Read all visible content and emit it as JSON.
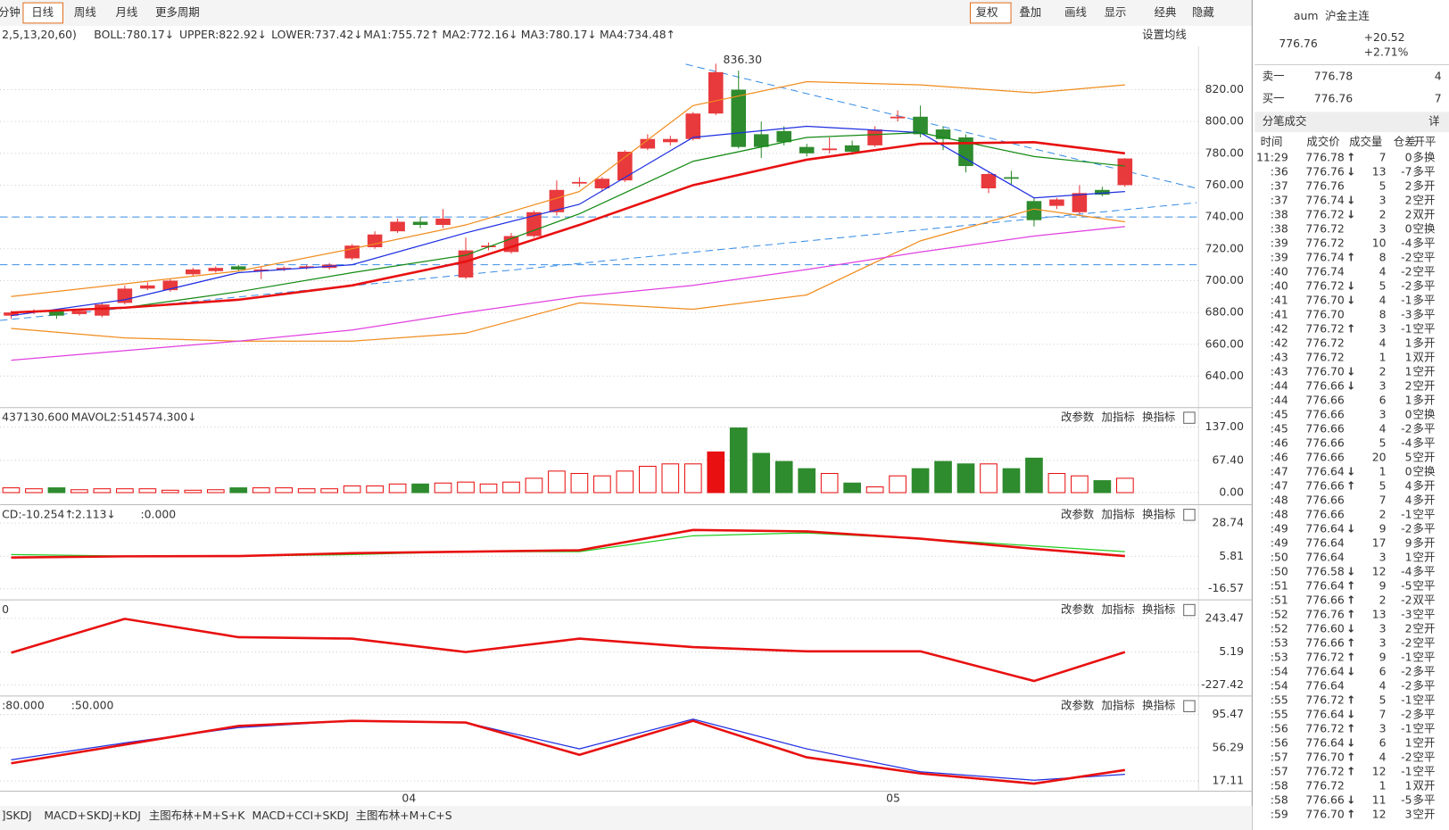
{
  "toolbar": {
    "left": [
      "分钟",
      "日线",
      "周线",
      "月线",
      "更多周期"
    ],
    "right": [
      "复权",
      "叠加",
      "画线",
      "显示",
      "经典",
      "隐藏"
    ]
  },
  "indicator_legend": [
    "2,5,13,20,60)",
    "BOLL:780.17↓",
    "UPPER:822.92↓",
    "LOWER:737.42↓",
    "MA1:755.72↑",
    "MA2:772.16↓",
    "MA3:780.17↓",
    "MA4:734.48↑"
  ],
  "set_ma": "设置均线",
  "panel_buttons": [
    "改参数",
    "加指标",
    "换指标"
  ],
  "x_labels": [
    {
      "value": 17.5,
      "label": "04"
    },
    {
      "value": 38.8,
      "label": "05"
    }
  ],
  "charts": {
    "price": {
      "ylim": [
        620.8,
        847.3
      ],
      "yticks": [
        {
          "value": 640,
          "label": "640.00"
        },
        {
          "value": 660,
          "label": "660.00"
        },
        {
          "value": 680,
          "label": "680.00"
        },
        {
          "value": 700,
          "label": "700.00"
        },
        {
          "value": 720,
          "label": "720.00"
        },
        {
          "value": 740,
          "label": "740.00"
        },
        {
          "value": 760,
          "label": "760.00"
        },
        {
          "value": 780,
          "label": "780.00"
        },
        {
          "value": 800,
          "label": "800.00"
        },
        {
          "value": 820,
          "label": "820.00"
        }
      ],
      "high_label": {
        "value": 836.3,
        "label": "836.30",
        "index": 31
      },
      "candles": [
        [
          678,
          681,
          676,
          680
        ],
        [
          680,
          682,
          679,
          681
        ],
        [
          681,
          682,
          676,
          678
        ],
        [
          679,
          682,
          678,
          681
        ],
        [
          678,
          686,
          677,
          685
        ],
        [
          686,
          697,
          685,
          695
        ],
        [
          695,
          699,
          694,
          697
        ],
        [
          694,
          701,
          693,
          700
        ],
        [
          704,
          708,
          703,
          707
        ],
        [
          706,
          709,
          705,
          708
        ],
        [
          709,
          710,
          706,
          707
        ],
        [
          706,
          709,
          701,
          707
        ],
        [
          707,
          709,
          706,
          708
        ],
        [
          708,
          710,
          707,
          709
        ],
        [
          708,
          711,
          707,
          710
        ],
        [
          714,
          723,
          713,
          722
        ],
        [
          721,
          731,
          720,
          729
        ],
        [
          731,
          739,
          730,
          737
        ],
        [
          737,
          740,
          733,
          735
        ],
        [
          735,
          745,
          733,
          739
        ],
        [
          702,
          727,
          701,
          719
        ],
        [
          721,
          724,
          719,
          722
        ],
        [
          718,
          730,
          717,
          728
        ],
        [
          728,
          744,
          727,
          743
        ],
        [
          743,
          763,
          741,
          757
        ],
        [
          761,
          765,
          759,
          762
        ],
        [
          758,
          765,
          756,
          764
        ],
        [
          763,
          782,
          762,
          781
        ],
        [
          783,
          792,
          782,
          789
        ],
        [
          787,
          791,
          785,
          789
        ],
        [
          789,
          806,
          788,
          805
        ],
        [
          805,
          836.3,
          804,
          831
        ],
        [
          820,
          832,
          783,
          784
        ],
        [
          792,
          800,
          777,
          784
        ],
        [
          794,
          797,
          785,
          787
        ],
        [
          784,
          786,
          778,
          780
        ],
        [
          782,
          790,
          780,
          783
        ],
        [
          785,
          788,
          779,
          781
        ],
        [
          785,
          797,
          784,
          795
        ],
        [
          802,
          807,
          800,
          803
        ],
        [
          803,
          810,
          790,
          792
        ],
        [
          795,
          797,
          782,
          789
        ],
        [
          790,
          792,
          768,
          772
        ],
        [
          758,
          768,
          755,
          767
        ],
        [
          765,
          769,
          760,
          764
        ],
        [
          750,
          752,
          734,
          738
        ],
        [
          747,
          752,
          745,
          751
        ],
        [
          743,
          760,
          742,
          755
        ],
        [
          757,
          759,
          753,
          754
        ],
        [
          760,
          777,
          759,
          776.76
        ]
      ],
      "x": [
        0,
        5,
        10,
        15,
        20,
        25,
        30,
        35,
        40,
        45,
        49
      ],
      "series": [
        {
          "name": "UPPER",
          "color": "#f08c1e",
          "values": [
            690,
            698,
            706,
            720,
            735,
            756,
            810,
            825,
            823,
            818,
            823
          ]
        },
        {
          "name": "LOWER",
          "color": "#f08c1e",
          "values": [
            670,
            664,
            662,
            662,
            667,
            686,
            682,
            691,
            725,
            745,
            737
          ]
        },
        {
          "name": "MA4",
          "color": "#e040e0",
          "values": [
            650,
            656,
            662,
            669,
            680,
            690,
            697,
            707,
            718,
            728,
            734
          ]
        },
        {
          "name": "MA1",
          "color": "#1e2ee0",
          "values": [
            678,
            688,
            705,
            710,
            730,
            748,
            790,
            797,
            793,
            752,
            756
          ]
        },
        {
          "name": "MA2",
          "color": "#138a13",
          "values": [
            680,
            683,
            693,
            705,
            716,
            742,
            775,
            790,
            793,
            778,
            772
          ]
        },
        {
          "name": "MA3",
          "color": "#e81010",
          "values": [
            680,
            683,
            688,
            697,
            712,
            735,
            760,
            776,
            786,
            787,
            780
          ]
        }
      ]
    },
    "volume": {
      "header": [
        "437130.600",
        "MAVOL2:514574.300↓"
      ],
      "ylim": [
        -23.2,
        173.7
      ],
      "yticks": [
        {
          "value": 0,
          "label": "0.00"
        },
        {
          "value": 67.4,
          "label": "67.40"
        },
        {
          "value": 137,
          "label": "137.00"
        }
      ],
      "values": [
        10,
        8,
        10,
        6,
        8,
        8,
        8,
        5,
        5,
        6,
        10,
        10,
        10,
        8,
        8,
        14,
        14,
        18,
        18,
        20,
        22,
        18,
        22,
        30,
        45,
        40,
        35,
        45,
        55,
        60,
        60,
        85,
        135,
        82,
        65,
        50,
        40,
        20,
        12,
        35,
        50,
        65,
        60,
        60,
        50,
        72,
        40,
        35,
        25,
        30
      ]
    },
    "macd": {
      "header": [
        "CD:-10.254↑",
        ":2.113↓",
        ":0.000"
      ],
      "ylim": [
        -23.6,
        40.2
      ],
      "yticks": [
        {
          "value": 28.74,
          "label": "28.74"
        },
        {
          "value": 5.81,
          "label": "5.81"
        },
        {
          "value": -16.57,
          "label": "-16.57"
        }
      ],
      "x": [
        0,
        5,
        10,
        15,
        20,
        25,
        30,
        35,
        40,
        45,
        49
      ],
      "series": [
        {
          "name": "DEA",
          "color": "#22cc22",
          "values": [
            7,
            6,
            6,
            7,
            9,
            9,
            20,
            22,
            18,
            13,
            9
          ]
        },
        {
          "name": "DIF",
          "color": "#e81010",
          "values": [
            5,
            5.8,
            6,
            8,
            9,
            10,
            24,
            23,
            18,
            11,
            6
          ]
        }
      ]
    },
    "cci": {
      "header": [
        "0"
      ],
      "ylim": [
        -299.4,
        361.2
      ],
      "yticks": [
        {
          "value": 243.47,
          "label": "243.47"
        },
        {
          "value": 5.19,
          "label": "5.19"
        },
        {
          "value": -227.42,
          "label": "-227.42"
        }
      ],
      "x": [
        0,
        5,
        10,
        15,
        20,
        25,
        30,
        35,
        40,
        45,
        49
      ],
      "series": [
        {
          "name": "CCI",
          "color": "#e81010",
          "values": [
            0,
            240,
            110,
            100,
            5,
            100,
            40,
            10,
            10,
            -200,
            5
          ]
        }
      ]
    },
    "skdj": {
      "header": [
        ":80.000",
        ":50.000"
      ],
      "ylim": [
        6.2,
        115.1
      ],
      "yticks": [
        {
          "value": 95.47,
          "label": "95.47"
        },
        {
          "value": 56.29,
          "label": "56.29"
        },
        {
          "value": 17.11,
          "label": "17.11"
        }
      ],
      "x": [
        0,
        5,
        10,
        15,
        20,
        25,
        30,
        35,
        40,
        45,
        49
      ],
      "series": [
        {
          "name": "D",
          "color": "#1e2ee0",
          "values": [
            42,
            62,
            80,
            88,
            86,
            55,
            90,
            55,
            28,
            18,
            25
          ]
        },
        {
          "name": "K",
          "color": "#e81010",
          "values": [
            38,
            60,
            82,
            88,
            86,
            48,
            88,
            45,
            26,
            14,
            30
          ]
        }
      ]
    }
  },
  "bottom_tabs": [
    "]SKDJ",
    "MACD+SKDJ+KDJ",
    "主图布林+M+S+K",
    "MACD+CCI+SKDJ",
    "主图布林+M+C+S"
  ],
  "quote": {
    "code": "aum",
    "name": "沪金主连",
    "price": "776.76",
    "change": "+20.52",
    "pct": "+2.71%",
    "ask_label": "卖一",
    "ask": "776.78",
    "ask_vol": "4",
    "bid_label": "买一",
    "bid": "776.76",
    "bid_vol": "7"
  },
  "trades": {
    "title": "分笔成交",
    "detail": "详",
    "columns": [
      "时间",
      "成交价",
      "成交量",
      "仓差",
      "开平"
    ],
    "rows": [
      [
        "11:29",
        "776.78",
        "↑",
        "7",
        "0",
        "多换"
      ],
      [
        ":36",
        "776.76",
        "↓",
        "13",
        "-7",
        "多平"
      ],
      [
        ":37",
        "776.76",
        "",
        "5",
        "2",
        "多开"
      ],
      [
        ":37",
        "776.74",
        "↓",
        "3",
        "2",
        "空开"
      ],
      [
        ":38",
        "776.72",
        "↓",
        "2",
        "2",
        "双开"
      ],
      [
        ":38",
        "776.72",
        "",
        "3",
        "0",
        "空换"
      ],
      [
        ":39",
        "776.72",
        "",
        "10",
        "-4",
        "多平"
      ],
      [
        ":39",
        "776.74",
        "↑",
        "8",
        "-2",
        "空平"
      ],
      [
        ":40",
        "776.74",
        "",
        "4",
        "-2",
        "空平"
      ],
      [
        ":40",
        "776.72",
        "↓",
        "5",
        "-2",
        "多平"
      ],
      [
        ":41",
        "776.70",
        "↓",
        "4",
        "-1",
        "多平"
      ],
      [
        ":41",
        "776.70",
        "",
        "8",
        "-3",
        "多平"
      ],
      [
        ":42",
        "776.72",
        "↑",
        "3",
        "-1",
        "空平"
      ],
      [
        ":42",
        "776.72",
        "",
        "4",
        "1",
        "多开"
      ],
      [
        ":43",
        "776.72",
        "",
        "1",
        "1",
        "双开"
      ],
      [
        ":43",
        "776.70",
        "↓",
        "2",
        "1",
        "空开"
      ],
      [
        ":44",
        "776.66",
        "↓",
        "3",
        "2",
        "空开"
      ],
      [
        ":44",
        "776.66",
        "",
        "6",
        "1",
        "多开"
      ],
      [
        ":45",
        "776.66",
        "",
        "3",
        "0",
        "空换"
      ],
      [
        ":45",
        "776.66",
        "",
        "4",
        "-2",
        "多平"
      ],
      [
        ":46",
        "776.66",
        "",
        "5",
        "-4",
        "多平"
      ],
      [
        ":46",
        "776.66",
        "",
        "20",
        "5",
        "空开"
      ],
      [
        ":47",
        "776.64",
        "↓",
        "1",
        "0",
        "空换"
      ],
      [
        ":47",
        "776.66",
        "↑",
        "5",
        "4",
        "多开"
      ],
      [
        ":48",
        "776.66",
        "",
        "7",
        "4",
        "多开"
      ],
      [
        ":48",
        "776.66",
        "",
        "2",
        "-1",
        "空平"
      ],
      [
        ":49",
        "776.64",
        "↓",
        "9",
        "-2",
        "多平"
      ],
      [
        ":49",
        "776.64",
        "",
        "17",
        "9",
        "多开"
      ],
      [
        ":50",
        "776.64",
        "",
        "3",
        "1",
        "空开"
      ],
      [
        ":50",
        "776.58",
        "↓",
        "12",
        "-4",
        "多平"
      ],
      [
        ":51",
        "776.64",
        "↑",
        "9",
        "-5",
        "空平"
      ],
      [
        ":51",
        "776.66",
        "↑",
        "2",
        "-2",
        "双平"
      ],
      [
        ":52",
        "776.76",
        "↑",
        "13",
        "-3",
        "空平"
      ],
      [
        ":52",
        "776.60",
        "↓",
        "3",
        "2",
        "空开"
      ],
      [
        ":53",
        "776.66",
        "↑",
        "3",
        "-2",
        "空平"
      ],
      [
        ":53",
        "776.72",
        "↑",
        "9",
        "-1",
        "空平"
      ],
      [
        ":54",
        "776.64",
        "↓",
        "6",
        "-2",
        "多平"
      ],
      [
        ":54",
        "776.64",
        "",
        "4",
        "-2",
        "多平"
      ],
      [
        ":55",
        "776.72",
        "↑",
        "5",
        "-1",
        "空平"
      ],
      [
        ":55",
        "776.64",
        "↓",
        "7",
        "-2",
        "多平"
      ],
      [
        ":56",
        "776.72",
        "↑",
        "3",
        "-1",
        "空平"
      ],
      [
        ":56",
        "776.64",
        "↓",
        "6",
        "1",
        "空开"
      ],
      [
        ":57",
        "776.70",
        "↑",
        "4",
        "-2",
        "空平"
      ],
      [
        ":57",
        "776.72",
        "↑",
        "12",
        "-1",
        "空平"
      ],
      [
        ":58",
        "776.72",
        "",
        "1",
        "1",
        "双开"
      ],
      [
        ":58",
        "776.66",
        "↓",
        "11",
        "-5",
        "多平"
      ],
      [
        ":59",
        "776.70",
        "↑",
        "12",
        "3",
        "空开"
      ]
    ]
  }
}
